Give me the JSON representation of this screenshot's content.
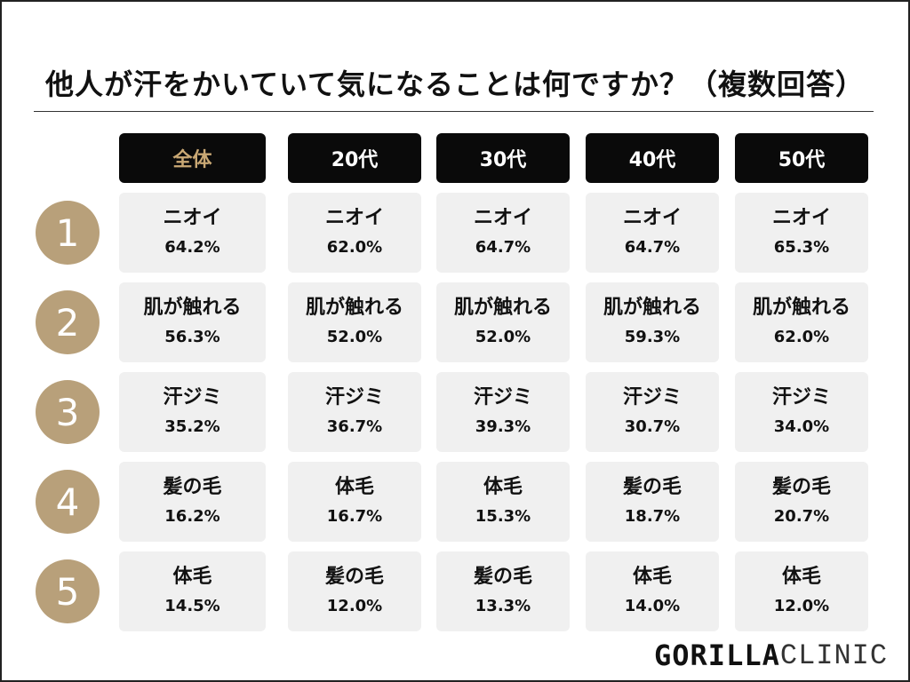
{
  "title": "他人が汗をかいていて気になることは何ですか？（複数回答）",
  "colors": {
    "header_bg": "#0a0a0a",
    "header_accent_text": "#c9a874",
    "rank_circle": "#b8a07a",
    "cell_bg": "#f0f0f0"
  },
  "chart_data": {
    "type": "table",
    "title": "他人が汗をかいていて気になることは何ですか？（複数回答）",
    "columns": [
      "全体",
      "20代",
      "30代",
      "40代",
      "50代"
    ],
    "ranks": [
      "1",
      "2",
      "3",
      "4",
      "5"
    ],
    "data": [
      [
        {
          "label": "ニオイ",
          "value": "64.2%"
        },
        {
          "label": "肌が触れる",
          "value": "56.3%"
        },
        {
          "label": "汗ジミ",
          "value": "35.2%"
        },
        {
          "label": "髪の毛",
          "value": "16.2%"
        },
        {
          "label": "体毛",
          "value": "14.5%"
        }
      ],
      [
        {
          "label": "ニオイ",
          "value": "62.0%"
        },
        {
          "label": "肌が触れる",
          "value": "52.0%"
        },
        {
          "label": "汗ジミ",
          "value": "36.7%"
        },
        {
          "label": "体毛",
          "value": "16.7%"
        },
        {
          "label": "髪の毛",
          "value": "12.0%"
        }
      ],
      [
        {
          "label": "ニオイ",
          "value": "64.7%"
        },
        {
          "label": "肌が触れる",
          "value": "52.0%"
        },
        {
          "label": "汗ジミ",
          "value": "39.3%"
        },
        {
          "label": "体毛",
          "value": "15.3%"
        },
        {
          "label": "髪の毛",
          "value": "13.3%"
        }
      ],
      [
        {
          "label": "ニオイ",
          "value": "64.7%"
        },
        {
          "label": "肌が触れる",
          "value": "59.3%"
        },
        {
          "label": "汗ジミ",
          "value": "30.7%"
        },
        {
          "label": "髪の毛",
          "value": "18.7%"
        },
        {
          "label": "体毛",
          "value": "14.0%"
        }
      ],
      [
        {
          "label": "ニオイ",
          "value": "65.3%"
        },
        {
          "label": "肌が触れる",
          "value": "62.0%"
        },
        {
          "label": "汗ジミ",
          "value": "34.0%"
        },
        {
          "label": "髪の毛",
          "value": "20.7%"
        },
        {
          "label": "体毛",
          "value": "12.0%"
        }
      ]
    ]
  },
  "logo": {
    "bold": "GORILLA",
    "light": "CLINIC"
  }
}
